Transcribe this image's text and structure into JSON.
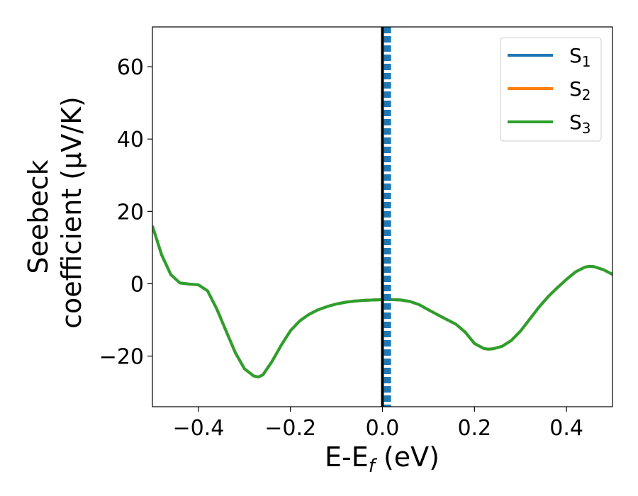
{
  "chart_data": {
    "type": "line",
    "title": "",
    "xlabel": {
      "main": "E-E",
      "sub": "f",
      "suffix": " (eV)"
    },
    "ylabel": {
      "line1": "Seebeck",
      "line2": "coefficient  (μV/K)"
    },
    "xlim": [
      -0.5,
      0.5
    ],
    "ylim": [
      -34,
      71
    ],
    "xticks": [
      -0.4,
      -0.2,
      0.0,
      0.2,
      0.4
    ],
    "xtick_labels": [
      "−0.4",
      "−0.2",
      "0.0",
      "0.2",
      "0.4"
    ],
    "yticks": [
      -20,
      0,
      20,
      40,
      60
    ],
    "ytick_labels": [
      "−20",
      "0",
      "20",
      "40",
      "60"
    ],
    "grid": false,
    "legend_position": "top-right",
    "series": [
      {
        "name": "S",
        "sub": "1",
        "color": "#1f77b4",
        "x": [
          -0.5,
          -0.48,
          -0.46,
          -0.44,
          -0.42,
          -0.4,
          -0.38,
          -0.36,
          -0.34,
          -0.32,
          -0.3,
          -0.28,
          -0.27,
          -0.26,
          -0.24,
          -0.22,
          -0.2,
          -0.18,
          -0.16,
          -0.14,
          -0.12,
          -0.1,
          -0.08,
          -0.06,
          -0.04,
          -0.02,
          0.0,
          0.02,
          0.04,
          0.06,
          0.08,
          0.1,
          0.12,
          0.14,
          0.16,
          0.18,
          0.2,
          0.22,
          0.23,
          0.24,
          0.26,
          0.28,
          0.3,
          0.32,
          0.34,
          0.36,
          0.38,
          0.4,
          0.42,
          0.44,
          0.45,
          0.46,
          0.48,
          0.5
        ],
        "y": [
          16,
          8,
          2.5,
          0.2,
          -0.1,
          -0.3,
          -2,
          -7,
          -13,
          -19,
          -23.5,
          -25.5,
          -25.8,
          -25.2,
          -21.5,
          -17,
          -13,
          -10.3,
          -8.5,
          -7.2,
          -6.3,
          -5.6,
          -5.1,
          -4.8,
          -4.6,
          -4.5,
          -4.4,
          -4.4,
          -4.5,
          -4.9,
          -5.8,
          -7.2,
          -8.6,
          -9.9,
          -11.2,
          -13.4,
          -16.5,
          -17.9,
          -18.1,
          -18,
          -17.3,
          -15.7,
          -13.1,
          -9.8,
          -6.5,
          -3.6,
          -1.1,
          1.2,
          3.3,
          4.6,
          4.8,
          4.7,
          3.9,
          2.6
        ]
      },
      {
        "name": "S",
        "sub": "2",
        "color": "#ff7f0e",
        "x": [
          -0.5,
          -0.48,
          -0.46,
          -0.44,
          -0.42,
          -0.4,
          -0.38,
          -0.36,
          -0.34,
          -0.32,
          -0.3,
          -0.28,
          -0.27,
          -0.26,
          -0.24,
          -0.22,
          -0.2,
          -0.18,
          -0.16,
          -0.14,
          -0.12,
          -0.1,
          -0.08,
          -0.06,
          -0.04,
          -0.02,
          0.0,
          0.02,
          0.04,
          0.06,
          0.08,
          0.1,
          0.12,
          0.14,
          0.16,
          0.18,
          0.2,
          0.22,
          0.23,
          0.24,
          0.26,
          0.28,
          0.3,
          0.32,
          0.34,
          0.36,
          0.38,
          0.4,
          0.42,
          0.44,
          0.45,
          0.46,
          0.48,
          0.5
        ],
        "y": [
          16,
          8,
          2.5,
          0.2,
          -0.1,
          -0.3,
          -2,
          -7,
          -13,
          -19,
          -23.5,
          -25.5,
          -25.8,
          -25.2,
          -21.5,
          -17,
          -13,
          -10.3,
          -8.5,
          -7.2,
          -6.3,
          -5.6,
          -5.1,
          -4.8,
          -4.6,
          -4.5,
          -4.4,
          -4.4,
          -4.5,
          -4.9,
          -5.8,
          -7.2,
          -8.6,
          -9.9,
          -11.2,
          -13.4,
          -16.5,
          -17.9,
          -18.1,
          -18,
          -17.3,
          -15.7,
          -13.1,
          -9.8,
          -6.5,
          -3.6,
          -1.1,
          1.2,
          3.3,
          4.6,
          4.8,
          4.7,
          3.9,
          2.6
        ]
      },
      {
        "name": "S",
        "sub": "3",
        "color": "#2ca02c",
        "x": [
          -0.5,
          -0.48,
          -0.46,
          -0.44,
          -0.42,
          -0.4,
          -0.38,
          -0.36,
          -0.34,
          -0.32,
          -0.3,
          -0.28,
          -0.27,
          -0.26,
          -0.24,
          -0.22,
          -0.2,
          -0.18,
          -0.16,
          -0.14,
          -0.12,
          -0.1,
          -0.08,
          -0.06,
          -0.04,
          -0.02,
          0.0,
          0.02,
          0.04,
          0.06,
          0.08,
          0.1,
          0.12,
          0.14,
          0.16,
          0.18,
          0.2,
          0.22,
          0.23,
          0.24,
          0.26,
          0.28,
          0.3,
          0.32,
          0.34,
          0.36,
          0.38,
          0.4,
          0.42,
          0.44,
          0.45,
          0.46,
          0.48,
          0.5
        ],
        "y": [
          16,
          8,
          2.5,
          0.2,
          -0.1,
          -0.3,
          -2,
          -7,
          -13,
          -19,
          -23.5,
          -25.5,
          -25.8,
          -25.2,
          -21.5,
          -17,
          -13,
          -10.3,
          -8.5,
          -7.2,
          -6.3,
          -5.6,
          -5.1,
          -4.8,
          -4.6,
          -4.5,
          -4.4,
          -4.4,
          -4.5,
          -4.9,
          -5.8,
          -7.2,
          -8.6,
          -9.9,
          -11.2,
          -13.4,
          -16.5,
          -17.9,
          -18.1,
          -18,
          -17.3,
          -15.7,
          -13.1,
          -9.8,
          -6.5,
          -3.6,
          -1.1,
          1.2,
          3.3,
          4.6,
          4.8,
          4.7,
          3.9,
          2.6
        ]
      }
    ],
    "vlines": [
      {
        "x": 0.0,
        "color": "#000000",
        "style": "solid"
      },
      {
        "x": 0.011,
        "color": "#1f77b4",
        "style": "dashed"
      }
    ]
  }
}
